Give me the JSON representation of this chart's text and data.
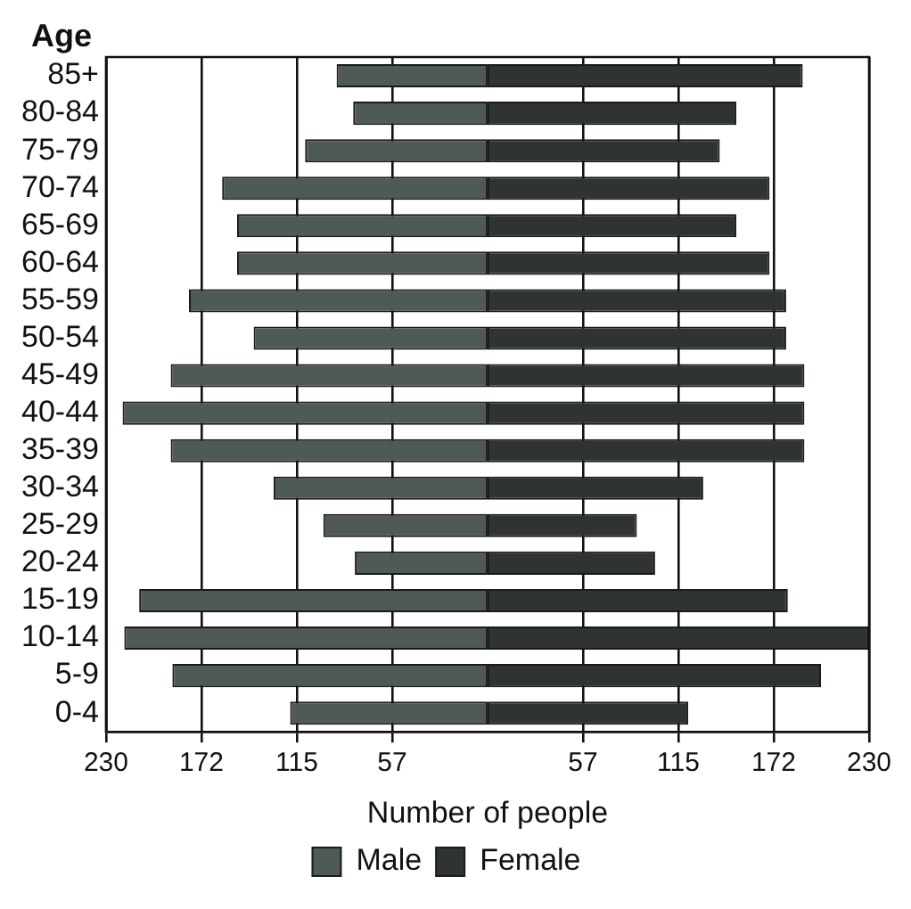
{
  "chart_data": {
    "type": "bar",
    "orientation": "horizontal",
    "ylabel": "Age",
    "xlabel": "Number of people",
    "categories": [
      "85+",
      "80-84",
      "75-79",
      "70-74",
      "65-69",
      "60-64",
      "55-59",
      "50-54",
      "45-49",
      "40-44",
      "35-39",
      "30-34",
      "25-29",
      "20-24",
      "15-19",
      "10-14",
      "5-9",
      "0-4"
    ],
    "series": [
      {
        "name": "Male",
        "color": "#4f5957",
        "values": [
          -91,
          -81,
          -110,
          -160,
          -151,
          -151,
          -180,
          -141,
          -191,
          -220,
          -191,
          -129,
          -99,
          -80,
          -210,
          -219,
          -190,
          -119
        ]
      },
      {
        "name": "Female",
        "color": "#2f3433",
        "values": [
          190,
          150,
          140,
          170,
          150,
          170,
          180,
          180,
          191,
          191,
          191,
          130,
          90,
          101,
          181,
          230,
          201,
          121
        ]
      }
    ],
    "xlim": [
      -230,
      230
    ],
    "xticks": [
      {
        "value": -230,
        "label": "230"
      },
      {
        "value": -172.5,
        "label": "172"
      },
      {
        "value": -115,
        "label": "115"
      },
      {
        "value": -57.5,
        "label": "57"
      },
      {
        "value": 57.5,
        "label": "57"
      },
      {
        "value": 115,
        "label": "115"
      },
      {
        "value": 172.5,
        "label": "172"
      },
      {
        "value": 230,
        "label": "230"
      }
    ],
    "grid": "x",
    "legend": "bottom",
    "stacked": true
  }
}
